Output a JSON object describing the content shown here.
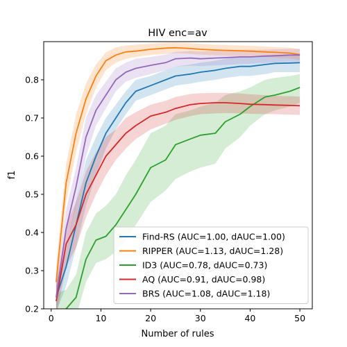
{
  "chart_data": {
    "type": "line",
    "title": "HIV enc=av",
    "xlabel": "Number of rules",
    "ylabel": "f1",
    "xlim": [
      -1.5,
      52.5
    ],
    "ylim": [
      0.2,
      0.9
    ],
    "xticks": [
      0,
      10,
      20,
      30,
      40,
      50
    ],
    "yticks": [
      0.2,
      0.3,
      0.4,
      0.5,
      0.6,
      0.7,
      0.8
    ],
    "grid": false,
    "legend_position": "lower-right",
    "x": [
      1,
      3,
      5,
      7,
      9,
      11,
      13,
      15,
      17,
      20,
      23,
      25,
      28,
      30,
      33,
      35,
      38,
      40,
      43,
      45,
      48,
      50
    ],
    "series": [
      {
        "name": "Find-RS (AUC=1.00, dAUC=1.00)",
        "color": "#1f77b4",
        "values": [
          0.23,
          0.31,
          0.42,
          0.53,
          0.6,
          0.66,
          0.7,
          0.74,
          0.77,
          0.785,
          0.8,
          0.81,
          0.815,
          0.82,
          0.825,
          0.83,
          0.835,
          0.835,
          0.84,
          0.843,
          0.844,
          0.845
        ],
        "lower": [
          0.19,
          0.26,
          0.36,
          0.47,
          0.55,
          0.62,
          0.67,
          0.71,
          0.745,
          0.76,
          0.775,
          0.785,
          0.79,
          0.795,
          0.8,
          0.805,
          0.81,
          0.81,
          0.815,
          0.82,
          0.82,
          0.82
        ],
        "upper": [
          0.27,
          0.36,
          0.48,
          0.59,
          0.65,
          0.7,
          0.735,
          0.77,
          0.8,
          0.81,
          0.825,
          0.835,
          0.84,
          0.845,
          0.85,
          0.855,
          0.86,
          0.86,
          0.865,
          0.865,
          0.866,
          0.866
        ]
      },
      {
        "name": "RIPPER (AUC=1.13, dAUC=1.28)",
        "color": "#ff7f0e",
        "values": [
          0.27,
          0.53,
          0.66,
          0.75,
          0.81,
          0.85,
          0.865,
          0.873,
          0.875,
          0.88,
          0.883,
          0.884,
          0.882,
          0.88,
          0.878,
          0.877,
          0.876,
          0.875,
          0.873,
          0.872,
          0.87,
          0.866
        ],
        "lower": [
          0.23,
          0.48,
          0.61,
          0.71,
          0.78,
          0.825,
          0.845,
          0.855,
          0.86,
          0.865,
          0.868,
          0.87,
          0.868,
          0.866,
          0.864,
          0.863,
          0.862,
          0.861,
          0.86,
          0.858,
          0.856,
          0.852
        ],
        "upper": [
          0.31,
          0.58,
          0.71,
          0.79,
          0.84,
          0.872,
          0.885,
          0.89,
          0.892,
          0.895,
          0.897,
          0.898,
          0.896,
          0.894,
          0.892,
          0.891,
          0.89,
          0.889,
          0.887,
          0.886,
          0.884,
          0.88
        ]
      },
      {
        "name": "ID3 (AUC=0.78, dAUC=0.73)",
        "color": "#2ca02c",
        "values": [
          0.19,
          0.2,
          0.23,
          0.33,
          0.38,
          0.39,
          0.42,
          0.46,
          0.5,
          0.57,
          0.59,
          0.63,
          0.645,
          0.655,
          0.66,
          0.69,
          0.71,
          0.73,
          0.755,
          0.76,
          0.77,
          0.78
        ],
        "lower": [
          0.15,
          0.16,
          0.18,
          0.27,
          0.32,
          0.33,
          0.35,
          0.38,
          0.42,
          0.48,
          0.51,
          0.54,
          0.56,
          0.57,
          0.58,
          0.62,
          0.65,
          0.68,
          0.71,
          0.72,
          0.73,
          0.74
        ],
        "upper": [
          0.24,
          0.25,
          0.29,
          0.4,
          0.45,
          0.47,
          0.5,
          0.55,
          0.59,
          0.66,
          0.68,
          0.71,
          0.72,
          0.73,
          0.74,
          0.76,
          0.77,
          0.78,
          0.8,
          0.805,
          0.81,
          0.815
        ]
      },
      {
        "name": "AQ (AUC=0.91, dAUC=0.98)",
        "color": "#d62728",
        "values": [
          0.22,
          0.37,
          0.42,
          0.5,
          0.55,
          0.6,
          0.63,
          0.66,
          0.68,
          0.705,
          0.715,
          0.725,
          0.735,
          0.738,
          0.74,
          0.74,
          0.738,
          0.736,
          0.735,
          0.734,
          0.733,
          0.732
        ],
        "lower": [
          0.18,
          0.31,
          0.36,
          0.44,
          0.5,
          0.55,
          0.59,
          0.62,
          0.645,
          0.67,
          0.685,
          0.695,
          0.705,
          0.71,
          0.712,
          0.713,
          0.712,
          0.711,
          0.71,
          0.71,
          0.709,
          0.708
        ],
        "upper": [
          0.26,
          0.42,
          0.48,
          0.56,
          0.61,
          0.65,
          0.67,
          0.7,
          0.715,
          0.735,
          0.745,
          0.755,
          0.763,
          0.765,
          0.766,
          0.766,
          0.764,
          0.762,
          0.76,
          0.758,
          0.757,
          0.756
        ]
      },
      {
        "name": "BRS (AUC=1.08, dAUC=1.18)",
        "color": "#9467bd",
        "values": [
          0.23,
          0.41,
          0.52,
          0.65,
          0.72,
          0.76,
          0.8,
          0.82,
          0.83,
          0.838,
          0.845,
          0.855,
          0.857,
          0.855,
          0.857,
          0.858,
          0.86,
          0.86,
          0.862,
          0.863,
          0.865,
          0.865
        ],
        "lower": [
          0.19,
          0.36,
          0.47,
          0.6,
          0.68,
          0.725,
          0.77,
          0.795,
          0.805,
          0.815,
          0.825,
          0.835,
          0.837,
          0.836,
          0.838,
          0.839,
          0.841,
          0.842,
          0.844,
          0.846,
          0.848,
          0.848
        ],
        "upper": [
          0.27,
          0.46,
          0.57,
          0.7,
          0.76,
          0.795,
          0.83,
          0.845,
          0.855,
          0.86,
          0.866,
          0.873,
          0.876,
          0.874,
          0.876,
          0.877,
          0.878,
          0.878,
          0.879,
          0.88,
          0.881,
          0.881
        ]
      }
    ]
  }
}
